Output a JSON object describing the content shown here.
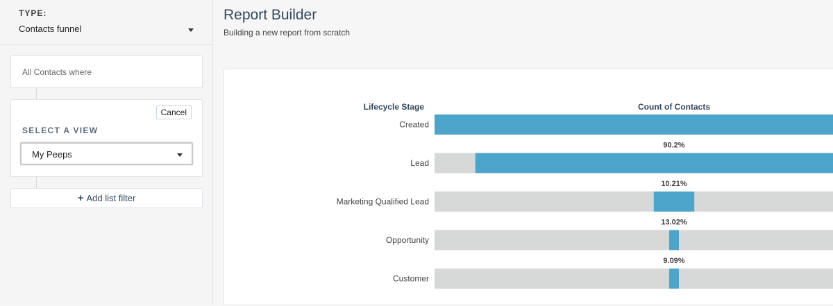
{
  "sidebar": {
    "type_label": "TYPE:",
    "type_value": "Contacts funnel",
    "all_contacts_text": "All Contacts where",
    "cancel_label": "Cancel",
    "select_view_label": "SELECT A VIEW",
    "view_value": "My Peeps",
    "add_filter_label": "Add list filter"
  },
  "header": {
    "title": "Report Builder",
    "subtitle": "Building a new report from scratch"
  },
  "chart_data": {
    "type": "bar",
    "xlabel": "Count of Contacts",
    "ylabel": "Lifecycle Stage",
    "categories": [
      "Created",
      "Lead",
      "Marketing Qualified Lead",
      "Opportunity",
      "Customer"
    ],
    "values": [
      1.0,
      0.902,
      0.0921,
      0.012,
      0.0011
    ],
    "conversion_labels": [
      "",
      "90.2%",
      "10.21%",
      "13.02%",
      "9.09%"
    ],
    "orientation": "centered-funnel",
    "bar_color": "#4ea5cb",
    "track_color": "#d7d8d8"
  }
}
